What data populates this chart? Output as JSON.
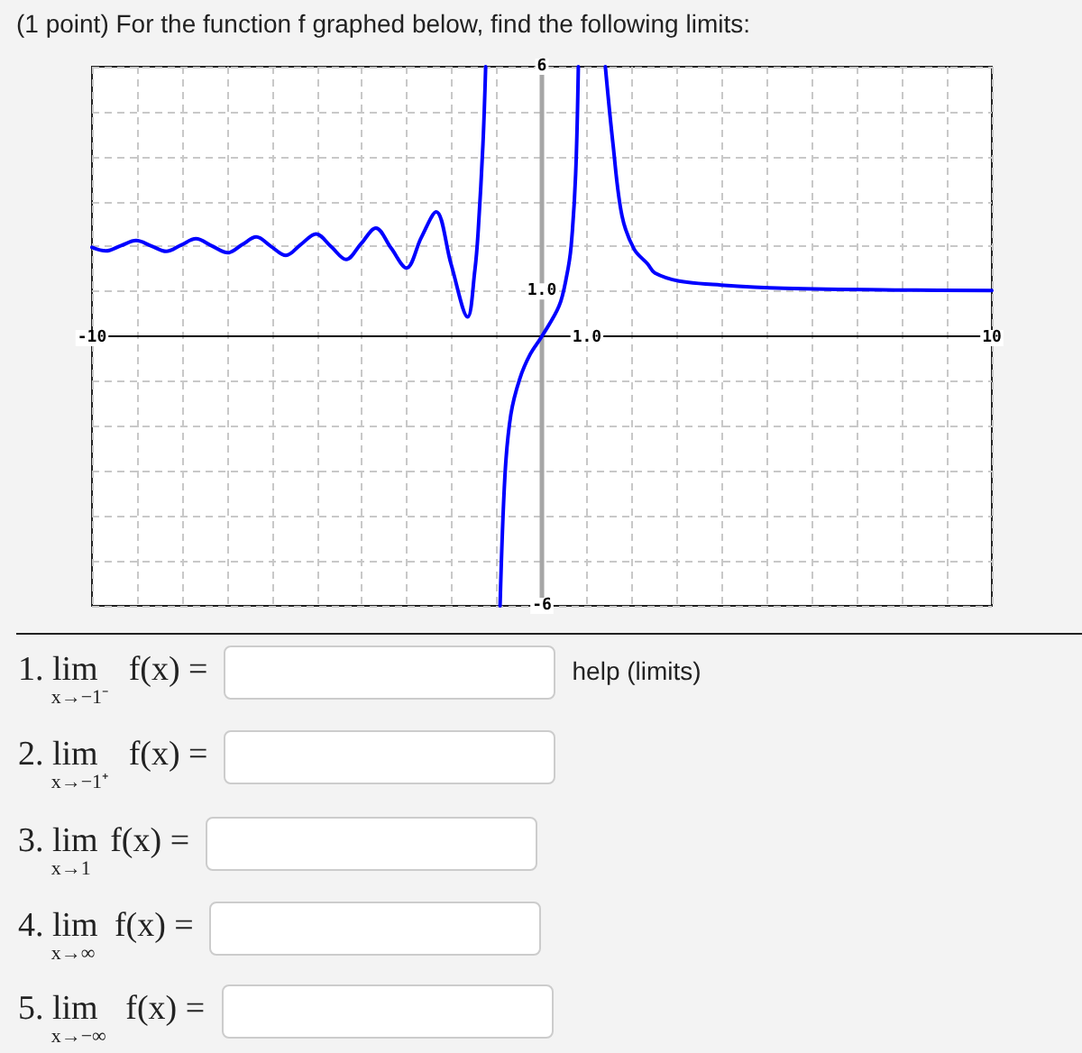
{
  "chart_data": {
    "type": "line",
    "title": "(1 point) For the function f graphed below, find the following limits:",
    "x": [
      -10,
      -9.69,
      -9.35,
      -9.02,
      -8.68,
      -8.35,
      -8.02,
      -7.69,
      -7.33,
      -6.98,
      -6.66,
      -6.35,
      -6.02,
      -5.69,
      -5.35,
      -5.02,
      -4.68,
      -4.35,
      -4.02,
      -3.69,
      -3.35,
      -3.01,
      -2.68,
      -2.35,
      -2.02,
      -1.65,
      -1.49,
      -1.42,
      -1.31,
      -1.25,
      -1,
      -0.93,
      -0.82,
      -0.69,
      -0.49,
      -0.26,
      0,
      0.38,
      0.55,
      0.65,
      0.75,
      0.81,
      1,
      1.41,
      1.58,
      1.78,
      2.05,
      2.35,
      2.51,
      3.05,
      3.98,
      5.38,
      8.05,
      10
    ],
    "values": [
      1.98,
      1.9,
      2.02,
      2.13,
      2.01,
      1.89,
      2.03,
      2.17,
      2.01,
      1.86,
      2.04,
      2.21,
      2,
      1.8,
      2.05,
      2.28,
      1.99,
      1.71,
      2.06,
      2.41,
      1.96,
      1.52,
      2.2,
      2.77,
      1.61,
      0.43,
      1.47,
      2.28,
      4.28,
      6,
      null,
      -6,
      -3.08,
      -1.74,
      -0.94,
      -0.4,
      0,
      0.67,
      1.34,
      2.01,
      3.61,
      6,
      null,
      6,
      4.28,
      2.68,
      1.94,
      1.61,
      1.41,
      1.23,
      1.14,
      1.07,
      1.03,
      1.02
    ],
    "color": "#0000ff",
    "marker": "none",
    "xlim": [
      -10,
      10
    ],
    "xticks": [
      -10,
      {
        "value": -9,
        "label": null
      },
      {
        "value": -8,
        "label": null
      },
      {
        "value": -7,
        "label": null
      },
      {
        "value": -6,
        "label": null
      },
      {
        "value": -5,
        "label": null
      },
      {
        "value": -4,
        "label": null
      },
      {
        "value": -3,
        "label": null
      },
      {
        "value": -2,
        "label": null
      },
      {
        "value": -1,
        "label": null
      },
      {
        "value": 0,
        "label": null
      },
      {
        "value": 1,
        "label": "1.0"
      },
      {
        "value": 2,
        "label": null
      },
      {
        "value": 3,
        "label": null
      },
      {
        "value": 4,
        "label": null
      },
      {
        "value": 5,
        "label": null
      },
      {
        "value": 6,
        "label": null
      },
      {
        "value": 7,
        "label": null
      },
      {
        "value": 8,
        "label": null
      },
      {
        "value": 9,
        "label": null
      },
      10
    ],
    "ylim": [
      -6,
      6
    ],
    "yticks": [
      -6,
      {
        "value": -5,
        "label": null
      },
      {
        "value": -4,
        "label": null
      },
      {
        "value": -3,
        "label": null
      },
      {
        "value": -2,
        "label": null
      },
      {
        "value": -1,
        "label": null
      },
      {
        "value": 0,
        "label": null
      },
      {
        "value": 1,
        "label": "1.0"
      },
      {
        "value": 2,
        "label": null
      },
      {
        "value": 3,
        "label": null
      },
      {
        "value": 4,
        "label": null
      },
      {
        "value": 5,
        "label": null
      },
      6
    ],
    "grid": true,
    "annotations": [
      "1. lim$_{x→−1⁻}$ f(x) =",
      "help (limits)",
      "2. lim$_{x→−1⁺}$ f(x) =",
      "3. lim$_{x→1}$ f(x) =",
      "4. lim$_{x→∞}$ f(x) =",
      "5. lim$_{x→−∞}$ f(x) ="
    ]
  }
}
